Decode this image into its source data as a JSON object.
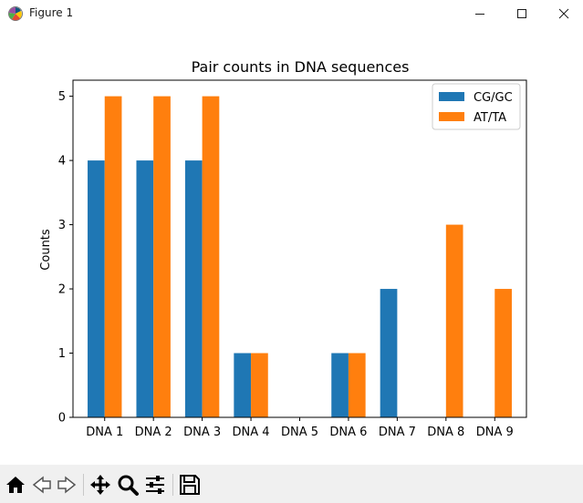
{
  "window": {
    "title": "Figure 1"
  },
  "colors": {
    "series1": "#1f77b4",
    "series2": "#ff7f0e"
  },
  "toolbar": {
    "icons": [
      "home-icon",
      "back-icon",
      "forward-icon",
      "pan-icon",
      "zoom-icon",
      "configure-subplots-icon",
      "save-icon"
    ]
  },
  "chart_data": {
    "type": "bar",
    "title": "Pair counts in DNA sequences",
    "xlabel": "",
    "ylabel": "Counts",
    "categories": [
      "DNA 1",
      "DNA 2",
      "DNA 3",
      "DNA 4",
      "DNA 5",
      "DNA 6",
      "DNA 7",
      "DNA 8",
      "DNA 9"
    ],
    "series": [
      {
        "name": "CG/GC",
        "values": [
          4,
          4,
          4,
          1,
          0,
          1,
          2,
          0,
          0
        ]
      },
      {
        "name": "AT/TA",
        "values": [
          5,
          5,
          5,
          1,
          0,
          1,
          0,
          3,
          2
        ]
      }
    ],
    "ylim": [
      0,
      5.25
    ],
    "yticks": [
      "0",
      "1",
      "2",
      "3",
      "4",
      "5"
    ],
    "grid": false,
    "legend": "upper right"
  }
}
